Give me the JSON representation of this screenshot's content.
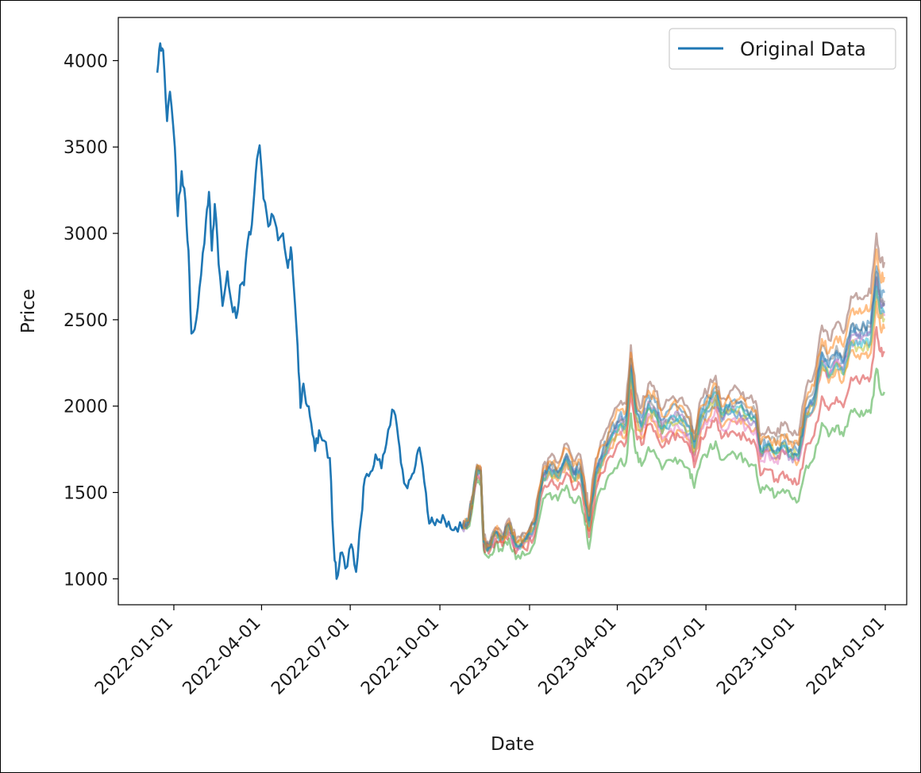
{
  "chart_data": {
    "type": "line",
    "title": "",
    "xlabel": "Date",
    "ylabel": "Price",
    "xlim": [
      "2021-11-05",
      "2024-01-23"
    ],
    "ylim": [
      850,
      4250
    ],
    "x_ticks": [
      "2022-01-01",
      "2022-04-01",
      "2022-07-01",
      "2022-10-01",
      "2023-01-01",
      "2023-04-01",
      "2023-07-01",
      "2023-10-01",
      "2024-01-01"
    ],
    "y_ticks": [
      1000,
      1500,
      2000,
      2500,
      3000,
      3500,
      4000
    ],
    "grid": false,
    "legend": {
      "placement": "top-right",
      "entries": [
        "Original Data"
      ]
    },
    "colors": {
      "original": "#1f77b4",
      "simulations": [
        "#1f77b4",
        "#ff7f0e",
        "#2ca02c",
        "#d62728",
        "#9467bd",
        "#8c564b",
        "#e377c2",
        "#7f7f7f",
        "#bcbd22",
        "#17becf"
      ]
    },
    "series": [
      {
        "name": "Original Data",
        "points": [
          [
            "2021-12-15",
            3930
          ],
          [
            "2021-12-18",
            4100
          ],
          [
            "2021-12-21",
            4060
          ],
          [
            "2021-12-25",
            3650
          ],
          [
            "2021-12-28",
            3820
          ],
          [
            "2022-01-02",
            3500
          ],
          [
            "2022-01-05",
            3100
          ],
          [
            "2022-01-09",
            3360
          ],
          [
            "2022-01-13",
            3180
          ],
          [
            "2022-01-16",
            2900
          ],
          [
            "2022-01-19",
            2420
          ],
          [
            "2022-01-24",
            2500
          ],
          [
            "2022-01-29",
            2760
          ],
          [
            "2022-02-03",
            3080
          ],
          [
            "2022-02-06",
            3240
          ],
          [
            "2022-02-09",
            2900
          ],
          [
            "2022-02-12",
            3170
          ],
          [
            "2022-02-16",
            2820
          ],
          [
            "2022-02-20",
            2580
          ],
          [
            "2022-02-25",
            2780
          ],
          [
            "2022-03-01",
            2600
          ],
          [
            "2022-03-06",
            2510
          ],
          [
            "2022-03-10",
            2700
          ],
          [
            "2022-03-14",
            2700
          ],
          [
            "2022-03-18",
            2960
          ],
          [
            "2022-03-22",
            3050
          ],
          [
            "2022-03-26",
            3350
          ],
          [
            "2022-03-30",
            3510
          ],
          [
            "2022-04-03",
            3200
          ],
          [
            "2022-04-08",
            3040
          ],
          [
            "2022-04-13",
            3100
          ],
          [
            "2022-04-18",
            2960
          ],
          [
            "2022-04-23",
            3000
          ],
          [
            "2022-04-28",
            2800
          ],
          [
            "2022-05-01",
            2920
          ],
          [
            "2022-05-04",
            2700
          ],
          [
            "2022-05-08",
            2350
          ],
          [
            "2022-05-11",
            1990
          ],
          [
            "2022-05-14",
            2130
          ],
          [
            "2022-05-18",
            2000
          ],
          [
            "2022-05-22",
            1900
          ],
          [
            "2022-05-26",
            1740
          ],
          [
            "2022-05-30",
            1860
          ],
          [
            "2022-06-04",
            1800
          ],
          [
            "2022-06-10",
            1700
          ],
          [
            "2022-06-14",
            1200
          ],
          [
            "2022-06-17",
            1000
          ],
          [
            "2022-06-21",
            1150
          ],
          [
            "2022-06-26",
            1060
          ],
          [
            "2022-07-02",
            1200
          ],
          [
            "2022-07-07",
            1040
          ],
          [
            "2022-07-12",
            1340
          ],
          [
            "2022-07-16",
            1580
          ],
          [
            "2022-07-22",
            1620
          ],
          [
            "2022-07-27",
            1720
          ],
          [
            "2022-08-02",
            1640
          ],
          [
            "2022-08-07",
            1780
          ],
          [
            "2022-08-13",
            1980
          ],
          [
            "2022-08-18",
            1880
          ],
          [
            "2022-08-22",
            1670
          ],
          [
            "2022-08-27",
            1540
          ],
          [
            "2022-09-01",
            1580
          ],
          [
            "2022-09-06",
            1660
          ],
          [
            "2022-09-10",
            1760
          ],
          [
            "2022-09-15",
            1560
          ],
          [
            "2022-09-20",
            1320
          ],
          [
            "2022-09-24",
            1330
          ],
          [
            "2022-09-30",
            1330
          ],
          [
            "2022-10-06",
            1340
          ],
          [
            "2022-10-12",
            1290
          ],
          [
            "2022-10-17",
            1300
          ],
          [
            "2022-10-24",
            1290
          ]
        ]
      }
    ],
    "simulations": {
      "count": 12,
      "x_start": "2022-10-24",
      "x_end": "2023-12-31",
      "mean_path": [
        [
          "2022-10-24",
          1290
        ],
        [
          "2022-10-30",
          1320
        ],
        [
          "2022-11-04",
          1470
        ],
        [
          "2022-11-08",
          1620
        ],
        [
          "2022-11-12",
          1600
        ],
        [
          "2022-11-15",
          1200
        ],
        [
          "2022-11-20",
          1160
        ],
        [
          "2022-11-27",
          1250
        ],
        [
          "2022-12-04",
          1210
        ],
        [
          "2022-12-11",
          1290
        ],
        [
          "2022-12-18",
          1170
        ],
        [
          "2022-12-27",
          1200
        ],
        [
          "2023-01-06",
          1280
        ],
        [
          "2023-01-15",
          1560
        ],
        [
          "2023-01-22",
          1600
        ],
        [
          "2023-01-30",
          1560
        ],
        [
          "2023-02-08",
          1660
        ],
        [
          "2023-02-15",
          1560
        ],
        [
          "2023-02-22",
          1590
        ],
        [
          "2023-02-27",
          1430
        ],
        [
          "2023-03-03",
          1280
        ],
        [
          "2023-03-10",
          1560
        ],
        [
          "2023-03-17",
          1660
        ],
        [
          "2023-03-25",
          1760
        ],
        [
          "2023-04-03",
          1840
        ],
        [
          "2023-04-10",
          1840
        ],
        [
          "2023-04-15",
          2150
        ],
        [
          "2023-04-20",
          1900
        ],
        [
          "2023-04-26",
          1820
        ],
        [
          "2023-05-03",
          1940
        ],
        [
          "2023-05-10",
          1900
        ],
        [
          "2023-05-17",
          1800
        ],
        [
          "2023-05-26",
          1860
        ],
        [
          "2023-06-04",
          1860
        ],
        [
          "2023-06-14",
          1800
        ],
        [
          "2023-06-19",
          1680
        ],
        [
          "2023-06-26",
          1860
        ],
        [
          "2023-07-04",
          1920
        ],
        [
          "2023-07-11",
          1980
        ],
        [
          "2023-07-17",
          1860
        ],
        [
          "2023-07-26",
          1900
        ],
        [
          "2023-08-04",
          1900
        ],
        [
          "2023-08-12",
          1860
        ],
        [
          "2023-08-21",
          1840
        ],
        [
          "2023-08-26",
          1660
        ],
        [
          "2023-09-03",
          1700
        ],
        [
          "2023-09-11",
          1650
        ],
        [
          "2023-09-18",
          1700
        ],
        [
          "2023-09-26",
          1660
        ],
        [
          "2023-10-04",
          1640
        ],
        [
          "2023-10-12",
          1880
        ],
        [
          "2023-10-20",
          1940
        ],
        [
          "2023-10-28",
          2180
        ],
        [
          "2023-11-04",
          2100
        ],
        [
          "2023-11-12",
          2180
        ],
        [
          "2023-11-19",
          2120
        ],
        [
          "2023-11-27",
          2300
        ],
        [
          "2023-12-04",
          2280
        ],
        [
          "2023-12-11",
          2290
        ],
        [
          "2023-12-17",
          2300
        ],
        [
          "2023-12-23",
          2600
        ],
        [
          "2023-12-27",
          2450
        ],
        [
          "2023-12-31",
          2450
        ]
      ]
    }
  }
}
